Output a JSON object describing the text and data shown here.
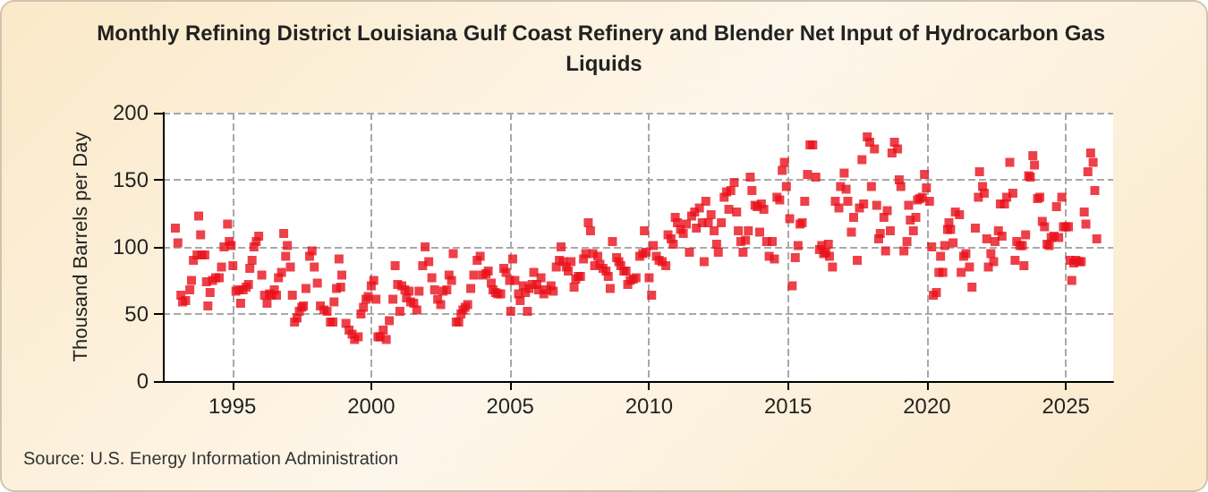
{
  "chart_data": {
    "type": "scatter",
    "title": "Monthly Refining District Louisiana Gulf Coast Refinery and Blender Net Input of Hydrocarbon Gas Liquids",
    "ylabel": "Thousand Barrels per Day",
    "annotations": [
      "Source: U.S. Energy Information Administration"
    ],
    "xlim": [
      1992.5,
      2026.7
    ],
    "xticks": [
      1995,
      2000,
      2005,
      2010,
      2015,
      2020,
      2025
    ],
    "ylim": [
      0,
      200
    ],
    "yticks": [
      0,
      50,
      100,
      150,
      200
    ],
    "grid": true,
    "marker": "square",
    "series": [
      {
        "color": "#e8101a",
        "x": [
          1992.95,
          1993.04,
          1993.15,
          1993.21,
          1993.32,
          1993.47,
          1993.53,
          1993.6,
          1993.73,
          1993.79,
          1993.86,
          1993.9,
          1994.01,
          1994.07,
          1994.12,
          1994.2,
          1994.29,
          1994.4,
          1994.53,
          1994.61,
          1994.7,
          1994.83,
          1994.89,
          1994.96,
          1995.02,
          1995.13,
          1995.24,
          1995.3,
          1995.39,
          1995.5,
          1995.58,
          1995.63,
          1995.71,
          1995.78,
          1995.86,
          1995.95,
          1996.06,
          1996.16,
          1996.25,
          1996.34,
          1996.42,
          1996.51,
          1996.59,
          1996.66,
          1996.77,
          1996.85,
          1996.92,
          1996.98,
          1997.09,
          1997.16,
          1997.24,
          1997.33,
          1997.41,
          1997.5,
          1997.56,
          1997.65,
          1997.78,
          1997.87,
          1997.95,
          1998.06,
          1998.17,
          1998.3,
          1998.41,
          1998.53,
          1998.62,
          1998.66,
          1998.75,
          1998.84,
          1998.9,
          1998.94,
          1999.09,
          1999.2,
          1999.31,
          1999.4,
          1999.53,
          1999.63,
          1999.72,
          1999.81,
          1999.89,
          2000.0,
          2000.09,
          2000.17,
          2000.24,
          2000.32,
          2000.43,
          2000.54,
          2000.65,
          2000.78,
          2000.86,
          2000.95,
          2001.03,
          2001.1,
          2001.21,
          2001.27,
          2001.36,
          2001.42,
          2001.53,
          2001.64,
          2001.72,
          2001.85,
          2001.94,
          2002.07,
          2002.18,
          2002.28,
          2002.39,
          2002.5,
          2002.59,
          2002.72,
          2002.8,
          2002.89,
          2002.95,
          2003.06,
          2003.15,
          2003.23,
          2003.3,
          2003.38,
          2003.47,
          2003.58,
          2003.69,
          2003.81,
          2003.92,
          2004.01,
          2004.13,
          2004.21,
          2004.32,
          2004.38,
          2004.47,
          2004.55,
          2004.66,
          2004.77,
          2004.85,
          2004.98,
          2005.02,
          2005.09,
          2005.17,
          2005.3,
          2005.36,
          2005.47,
          2005.55,
          2005.62,
          2005.68,
          2005.79,
          2005.85,
          2005.96,
          2006.02,
          2006.11,
          2006.21,
          2006.32,
          2006.47,
          2006.55,
          2006.66,
          2006.77,
          2006.83,
          2006.91,
          2007.02,
          2007.09,
          2007.19,
          2007.3,
          2007.36,
          2007.45,
          2007.53,
          2007.64,
          2007.72,
          2007.81,
          2007.89,
          2007.98,
          2008.04,
          2008.15,
          2008.23,
          2008.34,
          2008.45,
          2008.53,
          2008.6,
          2008.68,
          2008.83,
          2008.91,
          2008.98,
          2009.09,
          2009.17,
          2009.23,
          2009.32,
          2009.43,
          2009.53,
          2009.66,
          2009.77,
          2009.83,
          2009.89,
          2010.0,
          2010.09,
          2010.15,
          2010.26,
          2010.36,
          2010.47,
          2010.6,
          2010.68,
          2010.79,
          2010.87,
          2010.94,
          2011.02,
          2011.13,
          2011.23,
          2011.34,
          2011.45,
          2011.53,
          2011.64,
          2011.7,
          2011.81,
          2011.91,
          2011.98,
          2012.04,
          2012.13,
          2012.23,
          2012.34,
          2012.43,
          2012.49,
          2012.6,
          2012.7,
          2012.79,
          2012.87,
          2012.94,
          2013.06,
          2013.15,
          2013.21,
          2013.3,
          2013.38,
          2013.47,
          2013.57,
          2013.64,
          2013.7,
          2013.81,
          2013.89,
          2013.98,
          2014.04,
          2014.13,
          2014.23,
          2014.32,
          2014.43,
          2014.51,
          2014.6,
          2014.7,
          2014.79,
          2014.87,
          2014.94,
          2015.06,
          2015.15,
          2015.26,
          2015.36,
          2015.43,
          2015.51,
          2015.6,
          2015.7,
          2015.79,
          2015.89,
          2016.0,
          2016.13,
          2016.21,
          2016.28,
          2016.36,
          2016.45,
          2016.49,
          2016.6,
          2016.7,
          2016.83,
          2016.89,
          2017.02,
          2017.09,
          2017.15,
          2017.28,
          2017.36,
          2017.49,
          2017.57,
          2017.66,
          2017.72,
          2017.85,
          2017.94,
          2018.0,
          2018.11,
          2018.19,
          2018.26,
          2018.32,
          2018.45,
          2018.51,
          2018.57,
          2018.68,
          2018.74,
          2018.83,
          2018.94,
          2019.0,
          2019.06,
          2019.17,
          2019.28,
          2019.34,
          2019.4,
          2019.51,
          2019.6,
          2019.66,
          2019.74,
          2019.83,
          2019.91,
          2019.98,
          2020.09,
          2020.17,
          2020.23,
          2020.34,
          2020.43,
          2020.49,
          2020.57,
          2020.64,
          2020.74,
          2020.79,
          2020.85,
          2020.94,
          2021.02,
          2021.17,
          2021.23,
          2021.32,
          2021.4,
          2021.53,
          2021.62,
          2021.74,
          2021.85,
          2021.89,
          2022.0,
          2022.06,
          2022.15,
          2022.21,
          2022.3,
          2022.4,
          2022.45,
          2022.57,
          2022.64,
          2022.7,
          2022.79,
          2022.87,
          2022.98,
          2023.09,
          2023.17,
          2023.23,
          2023.34,
          2023.43,
          2023.49,
          2023.55,
          2023.66,
          2023.72,
          2023.81,
          2023.87,
          2023.98,
          2024.06,
          2024.15,
          2024.23,
          2024.32,
          2024.4,
          2024.47,
          2024.57,
          2024.66,
          2024.74,
          2024.85,
          2024.91,
          2025.0,
          2025.09,
          2025.15,
          2025.21,
          2025.28,
          2025.36,
          2025.47,
          2025.55,
          2025.66,
          2025.72,
          2025.79,
          2025.89,
          2025.98,
          2026.04,
          2026.11
        ],
        "values": [
          114,
          103,
          64,
          59,
          60,
          68,
          75,
          90,
          94,
          123,
          109,
          94,
          94,
          74,
          56,
          66,
          75,
          77,
          77,
          85,
          100,
          117,
          104,
          101,
          86,
          67,
          68,
          58,
          68,
          70,
          72,
          84,
          90,
          100,
          104,
          108,
          79,
          64,
          58,
          65,
          64,
          68,
          64,
          77,
          81,
          110,
          93,
          101,
          85,
          64,
          44,
          47,
          52,
          55,
          56,
          69,
          93,
          97,
          85,
          73,
          56,
          53,
          52,
          44,
          44,
          59,
          69,
          91,
          70,
          79,
          43,
          38,
          35,
          31,
          33,
          50,
          55,
          61,
          63,
          71,
          75,
          61,
          33,
          33,
          38,
          31,
          45,
          61,
          86,
          72,
          52,
          71,
          68,
          62,
          67,
          59,
          58,
          53,
          67,
          86,
          100,
          89,
          77,
          68,
          61,
          57,
          67,
          68,
          79,
          75,
          95,
          44,
          44,
          50,
          53,
          55,
          57,
          69,
          79,
          90,
          93,
          79,
          80,
          82,
          73,
          68,
          66,
          65,
          65,
          84,
          81,
          75,
          52,
          91,
          75,
          65,
          60,
          71,
          66,
          52,
          69,
          72,
          81,
          72,
          68,
          77,
          65,
          68,
          71,
          67,
          85,
          90,
          100,
          89,
          85,
          82,
          89,
          70,
          76,
          78,
          78,
          91,
          95,
          118,
          112,
          95,
          86,
          93,
          87,
          84,
          82,
          78,
          69,
          104,
          92,
          89,
          86,
          82,
          82,
          72,
          75,
          76,
          77,
          93,
          95,
          112,
          96,
          77,
          64,
          101,
          93,
          90,
          89,
          86,
          109,
          106,
          102,
          122,
          118,
          113,
          110,
          117,
          96,
          123,
          126,
          114,
          129,
          118,
          89,
          134,
          118,
          124,
          112,
          102,
          96,
          118,
          137,
          141,
          128,
          142,
          148,
          126,
          112,
          104,
          96,
          105,
          112,
          152,
          142,
          131,
          130,
          111,
          132,
          128,
          104,
          93,
          104,
          91,
          137,
          135,
          157,
          163,
          145,
          121,
          71,
          92,
          101,
          117,
          118,
          134,
          154,
          176,
          176,
          152,
          98,
          101,
          95,
          96,
          102,
          93,
          85,
          134,
          129,
          145,
          155,
          143,
          134,
          111,
          122,
          90,
          129,
          165,
          132,
          182,
          178,
          145,
          173,
          131,
          106,
          110,
          122,
          97,
          127,
          112,
          170,
          178,
          173,
          150,
          145,
          97,
          104,
          131,
          120,
          112,
          122,
          135,
          136,
          137,
          154,
          144,
          134,
          100,
          64,
          66,
          81,
          93,
          81,
          101,
          113,
          118,
          113,
          103,
          126,
          124,
          81,
          93,
          95,
          85,
          70,
          114,
          137,
          156,
          145,
          140,
          106,
          85,
          95,
          89,
          104,
          112,
          132,
          108,
          132,
          137,
          163,
          140,
          90,
          104,
          101,
          101,
          86,
          109,
          153,
          152,
          168,
          161,
          136,
          137,
          119,
          115,
          102,
          101,
          107,
          108,
          130,
          107,
          137,
          115,
          115,
          115,
          90,
          75,
          88,
          90,
          89,
          89,
          126,
          117,
          156,
          170,
          163,
          142,
          106
        ]
      }
    ]
  }
}
